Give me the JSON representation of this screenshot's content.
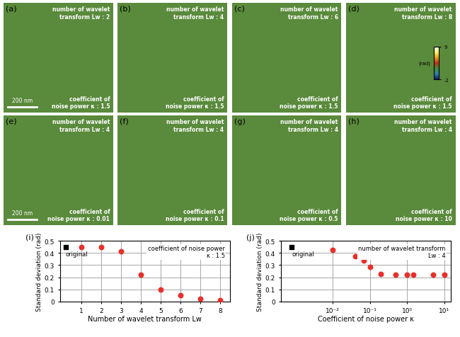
{
  "panels": [
    {
      "label": "(a)",
      "top_text": "number of wavelet\ntransform Lw : 2",
      "bottom_text": "coefficient of\nnoise power κ : 1.5",
      "scale_bar": "200 nm"
    },
    {
      "label": "(b)",
      "top_text": "number of wavelet\ntransform Lw : 4",
      "bottom_text": "coefficient of\nnoise power κ : 1.5"
    },
    {
      "label": "(c)",
      "top_text": "number of wavelet\ntransform Lw : 6",
      "bottom_text": "coefficient of\nnoise power κ : 1.5"
    },
    {
      "label": "(d)",
      "top_text": "number of wavelet\ntransform Lw : 8",
      "bottom_text": "coefficient of\nnoise power κ : 1.5",
      "colorbar": {
        "range": [
          -2,
          9
        ],
        "ticks": [
          -2,
          9
        ],
        "label": "(rad)"
      }
    },
    {
      "label": "(e)",
      "top_text": "number of wavelet\ntransform Lw : 4",
      "bottom_text": "coefficient of\nnoise power κ : 0.01",
      "scale_bar": "200 nm"
    },
    {
      "label": "(f)",
      "top_text": "number of wavelet\ntransform Lw : 4",
      "bottom_text": "coefficient of\nnoise power κ : 0.1"
    },
    {
      "label": "(g)",
      "top_text": "number of wavelet\ntransform Lw : 4",
      "bottom_text": "coefficient of\nnoise power κ : 0.5"
    },
    {
      "label": "(h)",
      "top_text": "number of wavelet\ntransform Lw : 4",
      "bottom_text": "coefficient of\nnoise power κ : 10"
    }
  ],
  "chart_data": [
    {
      "type": "scatter",
      "label": "(i)",
      "xlabel": "Number of wavelet transform Lw",
      "ylabel": "Standard deviation (rad)",
      "annotation": "coefficient of noise power\nκ : 1.5",
      "series": [
        {
          "name": "original",
          "x": [
            0.2
          ],
          "values": [
            0.45
          ],
          "color": "#000000",
          "marker": "square"
        },
        {
          "x": [
            1,
            2,
            3,
            4,
            5,
            6,
            7,
            8
          ],
          "values": [
            0.45,
            0.45,
            0.415,
            0.22,
            0.1,
            0.05,
            0.025,
            0.01
          ],
          "color": "#e8302a",
          "marker": "circle"
        }
      ],
      "xlim": [
        -0.1,
        8.5
      ],
      "xticks": [
        1,
        2,
        3,
        4,
        5,
        6,
        7,
        8
      ],
      "ylim": [
        0,
        0.5
      ],
      "yticks": [
        0,
        0.1,
        0.2,
        0.3,
        0.4,
        0.5
      ],
      "grid": true
    },
    {
      "type": "scatter",
      "label": "(j)",
      "log": "x",
      "xlabel": "Coefficient of noise power κ",
      "ylabel": "Standard deviation (rad)",
      "annotation": "number of wavelet transform\nLw : 4",
      "series": [
        {
          "name": "original",
          "x": [
            0.0008
          ],
          "values": [
            0.45
          ],
          "color": "#000000",
          "marker": "square"
        },
        {
          "x": [
            0.01,
            0.04,
            0.07,
            0.1,
            0.2,
            0.5,
            1,
            1.5,
            5,
            10
          ],
          "values": [
            0.425,
            0.375,
            0.335,
            0.285,
            0.225,
            0.22,
            0.22,
            0.22,
            0.22,
            0.22
          ],
          "color": "#e8302a",
          "marker": "circle"
        }
      ],
      "xlim": [
        0.0004,
        15
      ],
      "xticks": [
        {
          "value": 0.01,
          "label": "10⁻²"
        },
        {
          "value": 0.1,
          "label": "10⁻¹"
        },
        {
          "value": 1,
          "label": "10⁰"
        },
        {
          "value": 10,
          "label": "10¹"
        }
      ],
      "ylim": [
        0,
        0.5
      ],
      "yticks": [
        0,
        0.1,
        0.2,
        0.3,
        0.4,
        0.5
      ],
      "grid": true
    }
  ]
}
